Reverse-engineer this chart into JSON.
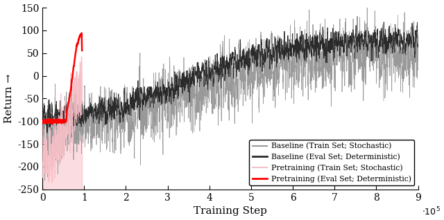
{
  "title": "",
  "xlabel": "Training Step",
  "ylabel": "Return →",
  "xlim": [
    0,
    900000.0
  ],
  "ylim": [
    -250,
    150
  ],
  "yticks": [
    -250,
    -200,
    -150,
    -100,
    -50,
    0,
    50,
    100,
    150
  ],
  "xticks": [
    0,
    100000.0,
    200000.0,
    300000.0,
    400000.0,
    500000.0,
    600000.0,
    700000.0,
    800000.0,
    900000.0
  ],
  "xticklabels": [
    "0",
    "1",
    "2",
    "3",
    "4",
    "5",
    "6",
    "7",
    "8",
    "9"
  ],
  "colors": {
    "baseline_stochastic": "#999999",
    "baseline_deterministic": "#2a2a2a",
    "pretrain_stochastic": "#f8c0c8",
    "pretrain_deterministic": "#ff0000"
  },
  "legend_labels": [
    "Baseline (Train Set; Stochastic)",
    "Baseline (Eval Set; Deterministic)",
    "Pretraining (Train Set; Stochastic)",
    "Pretraining (Eval Set; Deterministic)"
  ],
  "seed": 12345,
  "figsize": [
    6.4,
    3.18
  ],
  "dpi": 100,
  "pretrain_end": 95000.0,
  "baseline_noise": 70,
  "baseline_det_noise": 35,
  "pretrain_stoch_noise": 55,
  "pretrain_det_noise": 8
}
